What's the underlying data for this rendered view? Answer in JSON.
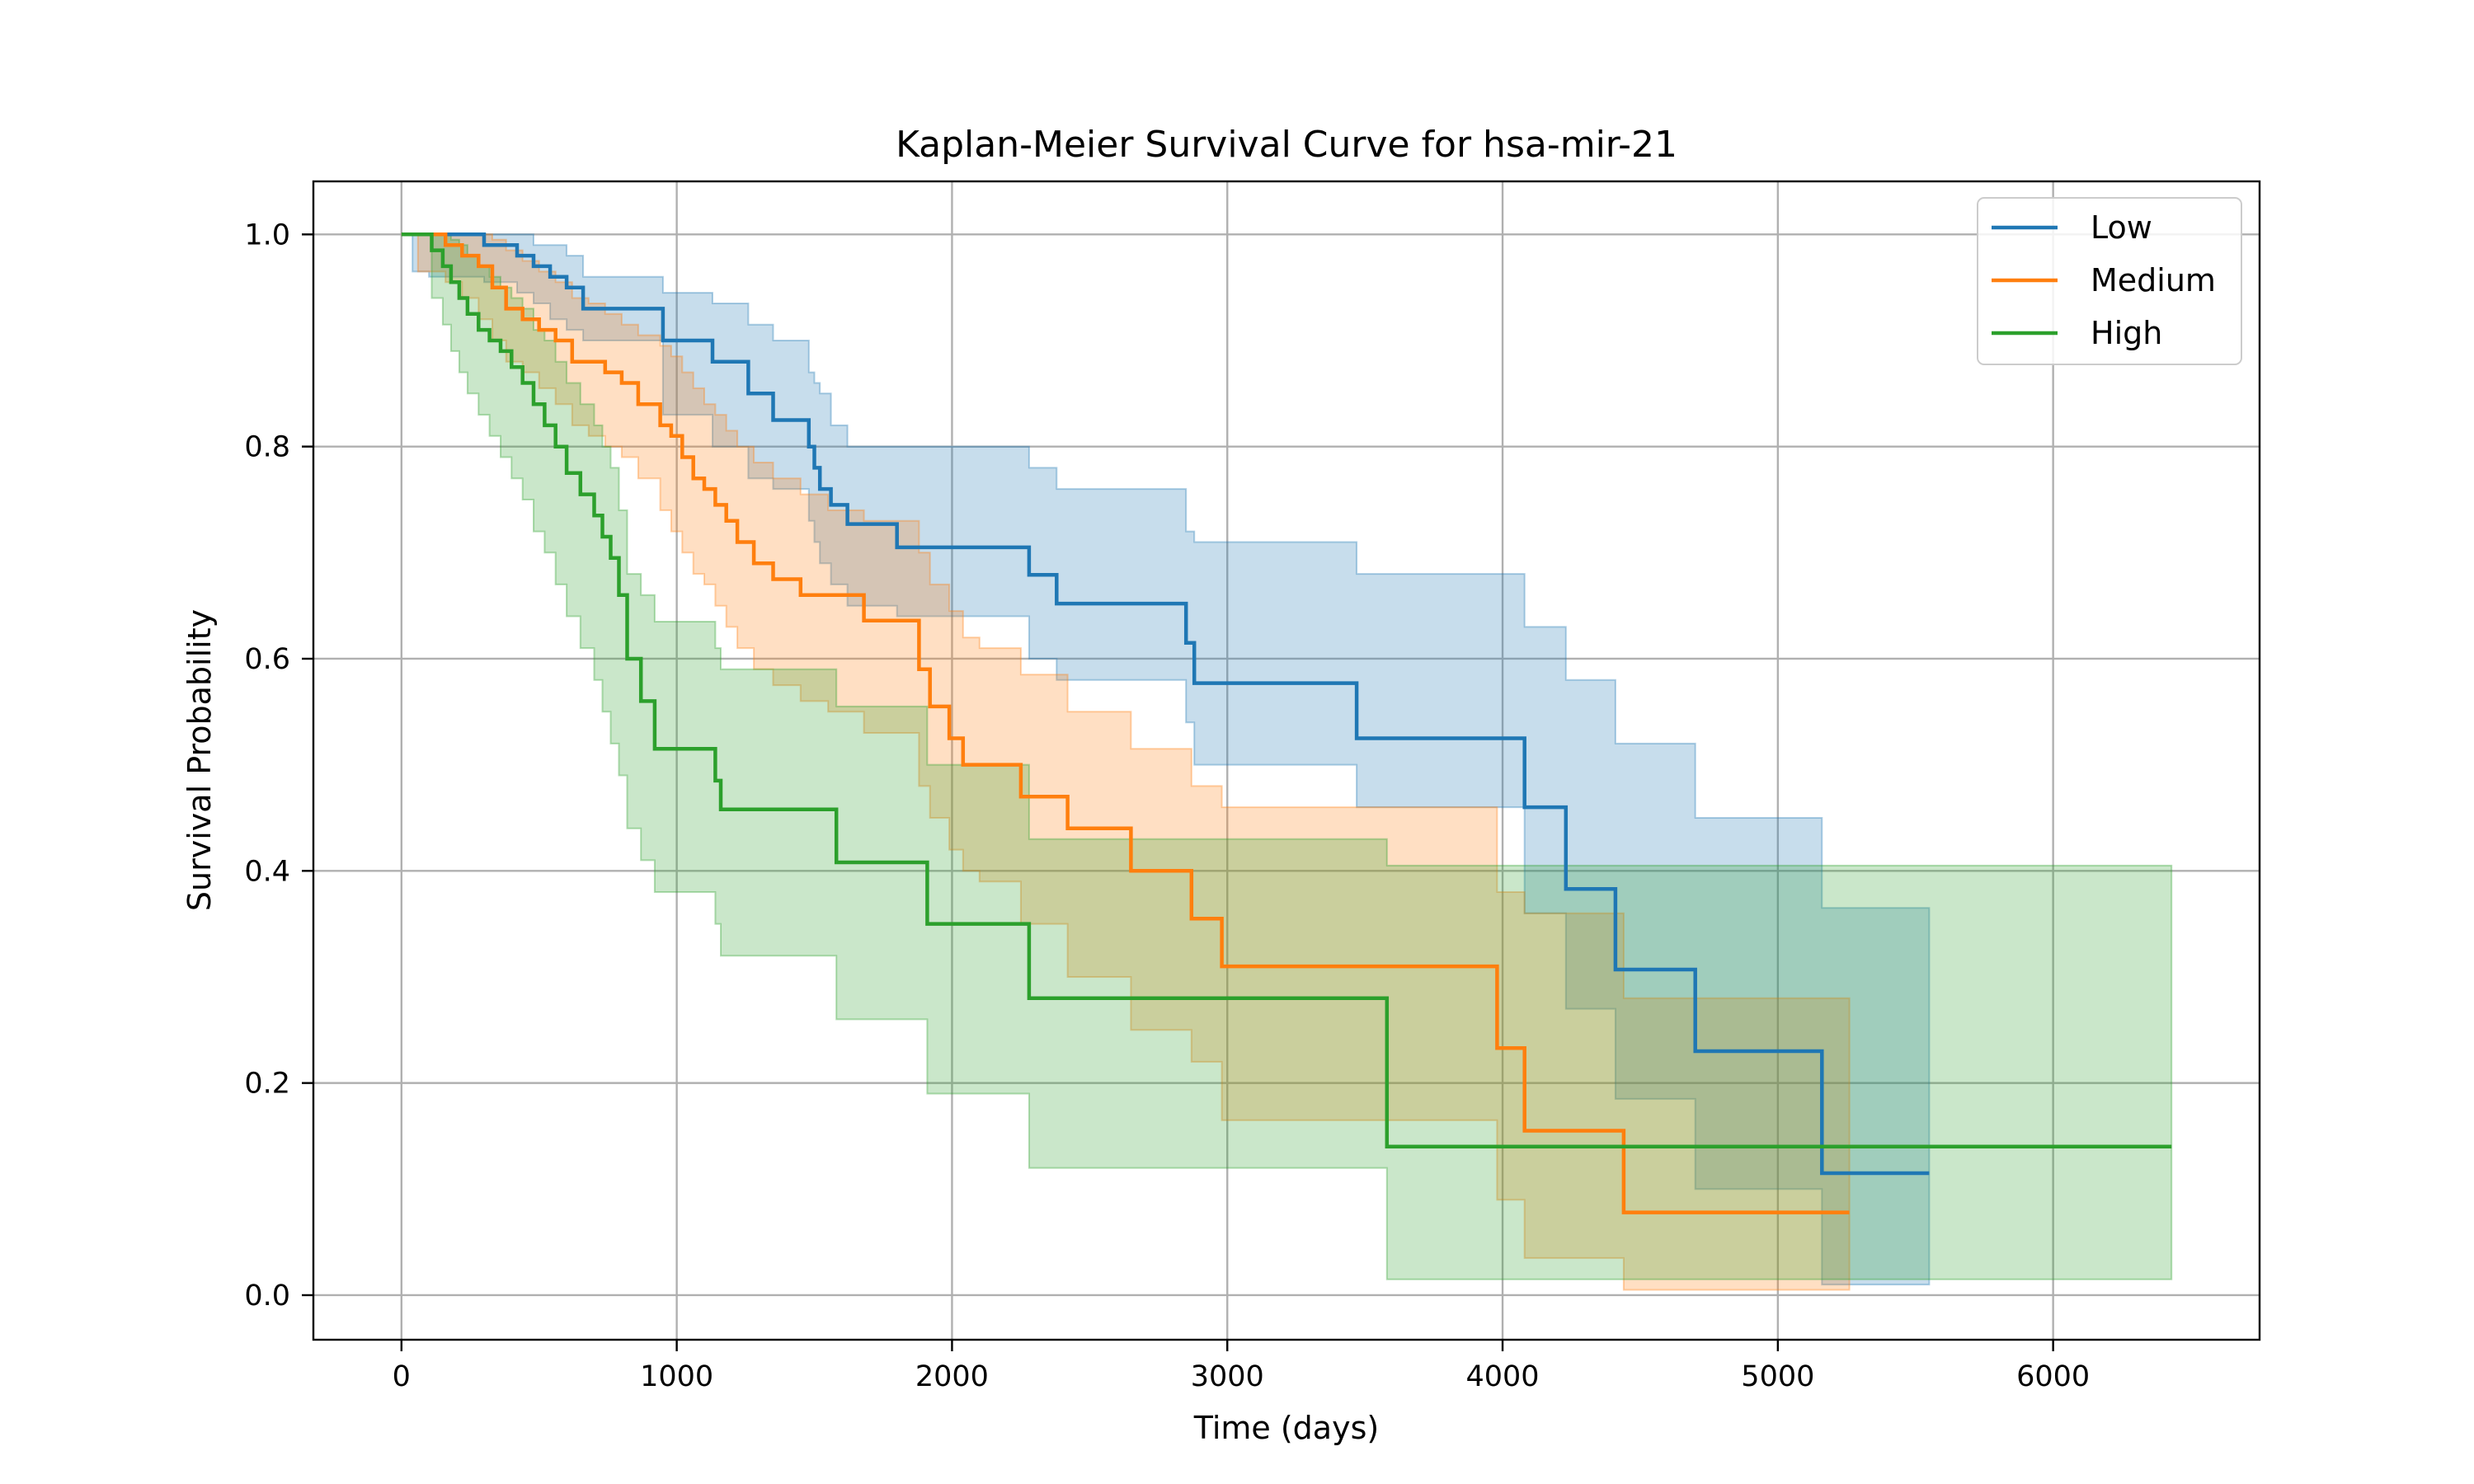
{
  "chart_data": {
    "type": "line",
    "title": "Kaplan-Meier Survival Curve for hsa-mir-21",
    "xlabel": "Time (days)",
    "ylabel": "Survival Probability",
    "xlim": [
      -320,
      6750
    ],
    "ylim": [
      -0.042,
      1.05
    ],
    "xticks": [
      0,
      1000,
      2000,
      3000,
      4000,
      5000,
      6000
    ],
    "yticks": [
      0.0,
      0.2,
      0.4,
      0.6,
      0.8,
      1.0
    ],
    "xtick_labels": [
      "0",
      "1000",
      "2000",
      "3000",
      "4000",
      "5000",
      "6000"
    ],
    "ytick_labels": [
      "0.0",
      "0.2",
      "0.4",
      "0.6",
      "0.8",
      "1.0"
    ],
    "grid": true,
    "legend_position": "top-right",
    "series": [
      {
        "name": "Low",
        "color": "#1f77b4",
        "x": [
          0,
          40,
          100,
          300,
          420,
          480,
          540,
          600,
          660,
          700,
          950,
          1000,
          1130,
          1260,
          1350,
          1480,
          1500,
          1520,
          1560,
          1620,
          1800,
          2280,
          2380,
          2850,
          2880,
          3470,
          4080,
          4230,
          4410,
          4700,
          5160,
          5550
        ],
        "y": [
          1.0,
          1.0,
          1.0,
          0.99,
          0.98,
          0.97,
          0.96,
          0.95,
          0.93,
          0.93,
          0.9,
          0.9,
          0.88,
          0.85,
          0.825,
          0.8,
          0.78,
          0.76,
          0.745,
          0.727,
          0.705,
          0.679,
          0.652,
          0.615,
          0.577,
          0.525,
          0.46,
          0.383,
          0.307,
          0.23,
          0.115,
          0.115
        ],
        "ci_lower": [
          1.0,
          0.965,
          0.96,
          0.955,
          0.945,
          0.935,
          0.92,
          0.91,
          0.9,
          0.9,
          0.83,
          0.83,
          0.8,
          0.77,
          0.76,
          0.73,
          0.71,
          0.69,
          0.67,
          0.65,
          0.64,
          0.6,
          0.58,
          0.54,
          0.5,
          0.46,
          0.36,
          0.27,
          0.185,
          0.1,
          0.01,
          0.01
        ],
        "ci_upper": [
          1.0,
          1.0,
          1.0,
          1.0,
          1.0,
          0.99,
          0.99,
          0.98,
          0.96,
          0.96,
          0.945,
          0.945,
          0.935,
          0.915,
          0.9,
          0.87,
          0.86,
          0.85,
          0.82,
          0.8,
          0.8,
          0.78,
          0.76,
          0.72,
          0.71,
          0.68,
          0.63,
          0.58,
          0.52,
          0.45,
          0.365,
          0.365
        ]
      },
      {
        "name": "Medium",
        "color": "#ff7f0e",
        "x": [
          0,
          60,
          160,
          220,
          280,
          330,
          380,
          440,
          500,
          560,
          620,
          680,
          740,
          800,
          860,
          940,
          980,
          1020,
          1060,
          1100,
          1140,
          1180,
          1220,
          1280,
          1350,
          1450,
          1550,
          1680,
          1880,
          1920,
          1990,
          2040,
          2100,
          2250,
          2420,
          2650,
          2870,
          2980,
          3980,
          4080,
          4440,
          5260
        ],
        "y": [
          1.0,
          1.0,
          0.99,
          0.98,
          0.97,
          0.95,
          0.93,
          0.92,
          0.91,
          0.9,
          0.88,
          0.88,
          0.87,
          0.86,
          0.84,
          0.82,
          0.81,
          0.79,
          0.77,
          0.76,
          0.745,
          0.73,
          0.71,
          0.69,
          0.675,
          0.66,
          0.66,
          0.636,
          0.59,
          0.555,
          0.525,
          0.5,
          0.5,
          0.47,
          0.44,
          0.4,
          0.355,
          0.31,
          0.233,
          0.155,
          0.078,
          0.078
        ],
        "ci_lower": [
          1.0,
          0.965,
          0.955,
          0.94,
          0.92,
          0.9,
          0.88,
          0.87,
          0.855,
          0.84,
          0.82,
          0.81,
          0.8,
          0.79,
          0.77,
          0.74,
          0.72,
          0.7,
          0.68,
          0.67,
          0.65,
          0.63,
          0.61,
          0.59,
          0.575,
          0.56,
          0.55,
          0.53,
          0.48,
          0.45,
          0.42,
          0.4,
          0.39,
          0.35,
          0.3,
          0.25,
          0.22,
          0.165,
          0.09,
          0.035,
          0.005,
          0.005
        ],
        "ci_upper": [
          1.0,
          1.0,
          1.0,
          1.0,
          1.0,
          0.995,
          0.985,
          0.975,
          0.965,
          0.955,
          0.94,
          0.935,
          0.925,
          0.915,
          0.905,
          0.895,
          0.885,
          0.87,
          0.855,
          0.84,
          0.83,
          0.815,
          0.8,
          0.785,
          0.77,
          0.755,
          0.74,
          0.73,
          0.7,
          0.67,
          0.645,
          0.62,
          0.61,
          0.585,
          0.55,
          0.515,
          0.48,
          0.46,
          0.38,
          0.36,
          0.28,
          0.28
        ]
      },
      {
        "name": "High",
        "color": "#2ca02c",
        "x": [
          0,
          110,
          150,
          180,
          210,
          240,
          280,
          320,
          360,
          400,
          440,
          480,
          520,
          560,
          600,
          650,
          700,
          730,
          760,
          790,
          820,
          870,
          920,
          1140,
          1160,
          1580,
          1910,
          2280,
          3580,
          6430
        ],
        "y": [
          1.0,
          0.985,
          0.97,
          0.955,
          0.94,
          0.925,
          0.91,
          0.9,
          0.89,
          0.875,
          0.86,
          0.84,
          0.82,
          0.8,
          0.775,
          0.755,
          0.735,
          0.715,
          0.695,
          0.66,
          0.6,
          0.56,
          0.515,
          0.485,
          0.458,
          0.408,
          0.35,
          0.28,
          0.14,
          0.14
        ],
        "ci_lower": [
          1.0,
          0.94,
          0.915,
          0.89,
          0.87,
          0.85,
          0.83,
          0.81,
          0.79,
          0.77,
          0.75,
          0.72,
          0.7,
          0.67,
          0.64,
          0.61,
          0.58,
          0.55,
          0.52,
          0.49,
          0.44,
          0.41,
          0.38,
          0.35,
          0.32,
          0.26,
          0.19,
          0.12,
          0.015,
          0.015
        ],
        "ci_upper": [
          1.0,
          1.0,
          1.0,
          0.995,
          0.99,
          0.98,
          0.97,
          0.96,
          0.95,
          0.94,
          0.93,
          0.91,
          0.9,
          0.88,
          0.86,
          0.84,
          0.82,
          0.8,
          0.78,
          0.74,
          0.68,
          0.66,
          0.635,
          0.61,
          0.59,
          0.555,
          0.5,
          0.43,
          0.405,
          0.405
        ]
      }
    ]
  }
}
